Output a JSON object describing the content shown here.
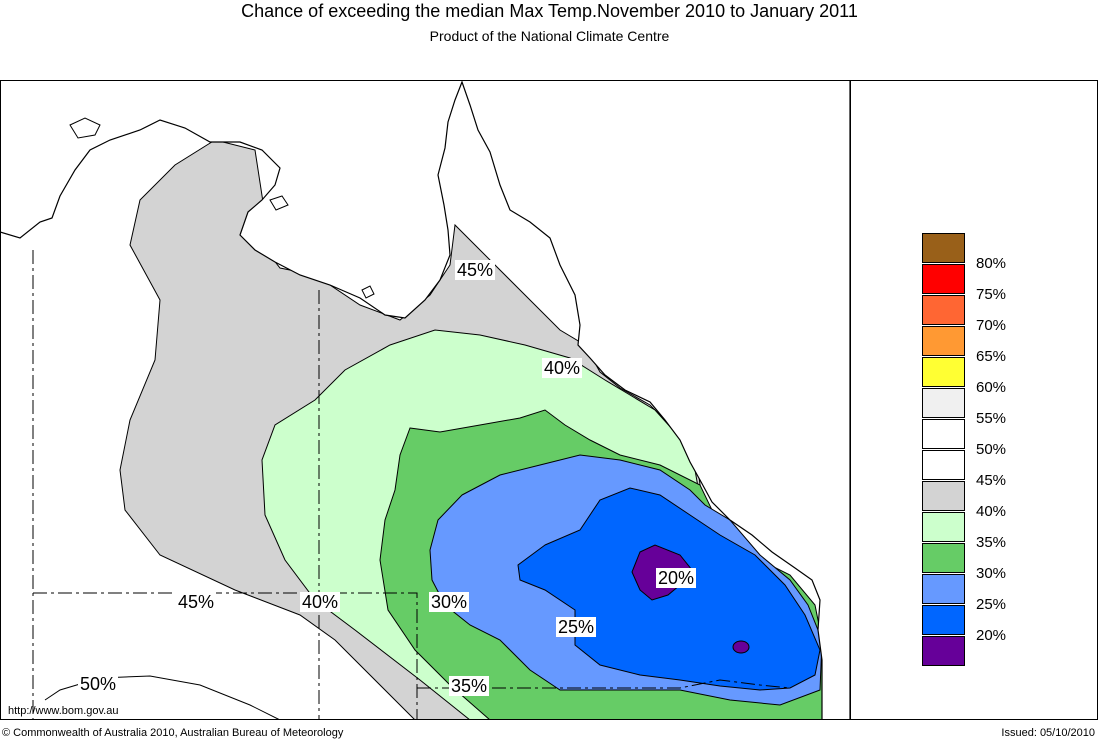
{
  "title": "Chance of exceeding the median Max Temp.November 2010 to January 2011",
  "subtitle": "Product of the National Climate Centre",
  "footer": {
    "url": "http://www.bom.gov.au",
    "copyright": "© Commonwealth of Australia 2010, Australian Bureau of Meteorology",
    "issued": "Issued: 05/10/2010"
  },
  "legend": [
    {
      "label": "80%",
      "color": "#996019"
    },
    {
      "label": "75%",
      "color": "#ff0000"
    },
    {
      "label": "70%",
      "color": "#ff6633"
    },
    {
      "label": "65%",
      "color": "#ff9933"
    },
    {
      "label": "60%",
      "color": "#ffff33"
    },
    {
      "label": "55%",
      "color": "#f0f0f0"
    },
    {
      "label": "50%",
      "color": "#ffffff"
    },
    {
      "label": "45%",
      "color": "#ffffff"
    },
    {
      "label": "40%",
      "color": "#d3d3d3"
    },
    {
      "label": "35%",
      "color": "#ccffcc"
    },
    {
      "label": "30%",
      "color": "#66cc66"
    },
    {
      "label": "25%",
      "color": "#6699ff"
    },
    {
      "label": "20%",
      "color": "#0066ff"
    },
    {
      "label": "",
      "color": "#660099"
    }
  ],
  "contour_labels": [
    {
      "text": "45%"
    },
    {
      "text": "40%"
    },
    {
      "text": "20%"
    },
    {
      "text": "25%"
    },
    {
      "text": "30%"
    },
    {
      "text": "40%"
    },
    {
      "text": "45%"
    },
    {
      "text": "35%"
    },
    {
      "text": "50%"
    }
  ]
}
